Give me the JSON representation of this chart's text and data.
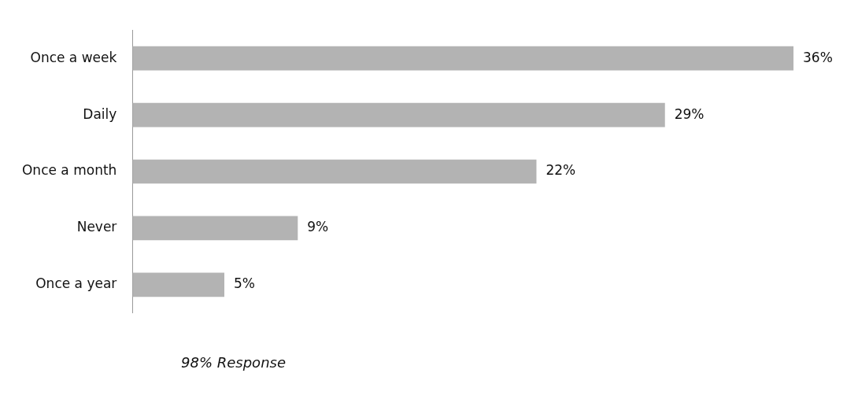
{
  "chart_data": {
    "type": "bar",
    "orientation": "horizontal",
    "categories": [
      "Once a week",
      "Daily",
      "Once a month",
      "Never",
      "Once a year"
    ],
    "values": [
      36,
      29,
      22,
      9,
      5
    ],
    "value_labels": [
      "36%",
      "29%",
      "22%",
      "9%",
      "5%"
    ],
    "color": "#b3b3b3",
    "tick_labels": "y",
    "legend": false,
    "annotations": [
      "98% Response"
    ]
  }
}
